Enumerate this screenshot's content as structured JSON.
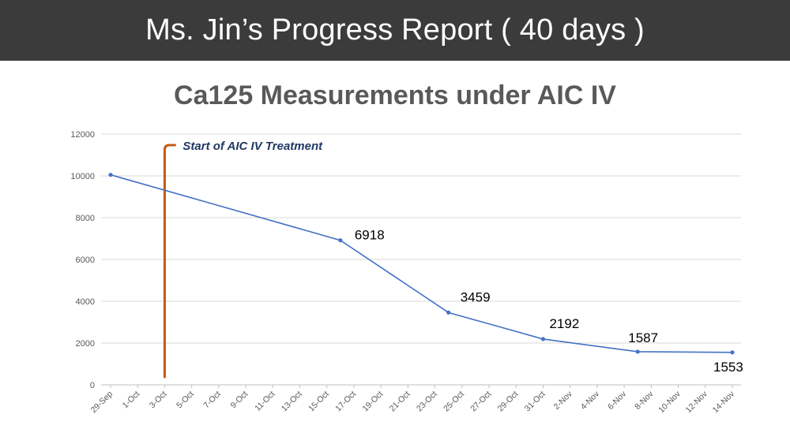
{
  "header": {
    "title": "Ms. Jin’s Progress Report ( 40 days )"
  },
  "chart_data": {
    "type": "line",
    "title": "Ca125 Measurements under AIC IV",
    "xlabel": "",
    "ylabel": "",
    "ylim": [
      0,
      12000
    ],
    "yticks": [
      0,
      2000,
      4000,
      6000,
      8000,
      10000,
      12000
    ],
    "grid": true,
    "categories": [
      "29-Sep",
      "1-Oct",
      "3-Oct",
      "5-Oct",
      "7-Oct",
      "9-Oct",
      "11-Oct",
      "13-Oct",
      "15-Oct",
      "17-Oct",
      "19-Oct",
      "21-Oct",
      "23-Oct",
      "25-Oct",
      "27-Oct",
      "29-Oct",
      "31-Oct",
      "2-Nov",
      "4-Nov",
      "6-Nov",
      "8-Nov",
      "10-Nov",
      "12-Nov",
      "14-Nov"
    ],
    "series": [
      {
        "name": "Ca125",
        "color": "#4472c4",
        "points": [
          {
            "x": "29-Sep",
            "day": 0,
            "y": 10050,
            "label": ""
          },
          {
            "x": "16-Oct",
            "day": 17,
            "y": 6918,
            "label": "6918"
          },
          {
            "x": "24-Oct",
            "day": 25,
            "y": 3459,
            "label": "3459"
          },
          {
            "x": "31-Oct",
            "day": 32,
            "y": 2192,
            "label": "2192"
          },
          {
            "x": "7-Nov",
            "day": 39,
            "y": 1587,
            "label": "1587"
          },
          {
            "x": "14-Nov",
            "day": 46,
            "y": 1553,
            "label": "1553"
          }
        ]
      }
    ],
    "annotation": {
      "text": "Start of AIC IV Treatment",
      "day": 4,
      "color": "#c55a11",
      "text_color": "#203864"
    }
  }
}
